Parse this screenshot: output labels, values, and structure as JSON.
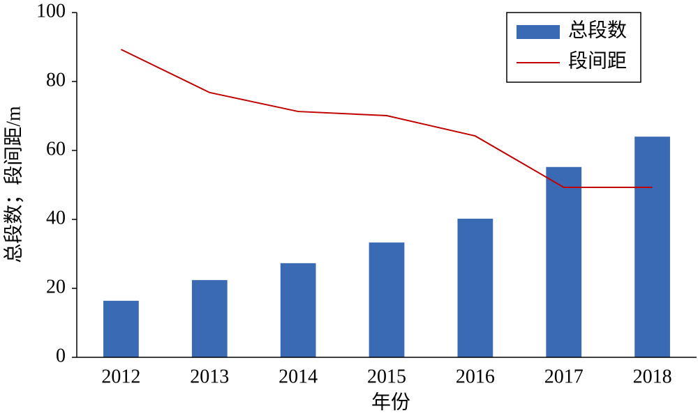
{
  "chart_data": {
    "type": "bar",
    "x_label": "年份",
    "y_label": "总段数；段间距/m",
    "categories": [
      "2012",
      "2013",
      "2014",
      "2015",
      "2016",
      "2017",
      "2018"
    ],
    "series": [
      {
        "name": "总段数",
        "type": "bar",
        "color": "#3a6ab4",
        "values": [
          16.4,
          22.4,
          27.3,
          33.3,
          40.2,
          55.2,
          64.0
        ]
      },
      {
        "name": "段间距",
        "type": "line",
        "color": "#c00000",
        "values": [
          89.3,
          76.8,
          71.3,
          70.1,
          64.2,
          49.3,
          49.3
        ]
      }
    ],
    "ylim": [
      0,
      100
    ],
    "yticks": [
      0,
      20,
      40,
      60,
      80,
      100
    ],
    "grid": false,
    "legend": "upper right"
  }
}
